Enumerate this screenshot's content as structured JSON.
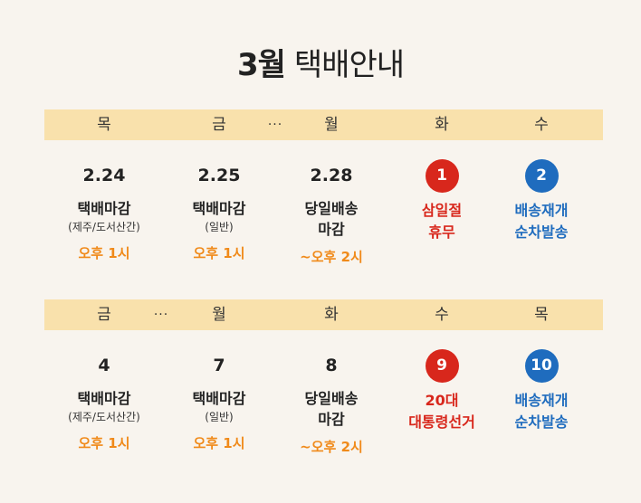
{
  "title": {
    "month": "3월",
    "rest": "택배안내"
  },
  "row1": {
    "days": [
      "목",
      "금",
      "월",
      "화",
      "수"
    ],
    "dots": "···",
    "cells": [
      {
        "date": "2.24",
        "label1": "택배마감",
        "label2": "(제주/도서산간)",
        "time": "오후 1시"
      },
      {
        "date": "2.25",
        "label1": "택배마감",
        "label2": "(일반)",
        "time": "오후 1시"
      },
      {
        "date": "2.28",
        "label1": "당일배송",
        "label2": "마감",
        "time": "~오후 2시"
      },
      {
        "num": "1",
        "line1": "삼일절",
        "line2": "휴무",
        "color": "#d8271c"
      },
      {
        "num": "2",
        "line1": "배송재개",
        "line2": "순차발송",
        "color": "#1f6cbe"
      }
    ]
  },
  "row2": {
    "days": [
      "금",
      "월",
      "화",
      "수",
      "목"
    ],
    "dots": "···",
    "cells": [
      {
        "date": "4",
        "label1": "택배마감",
        "label2": "(제주/도서산간)",
        "time": "오후 1시"
      },
      {
        "date": "7",
        "label1": "택배마감",
        "label2": "(일반)",
        "time": "오후 1시"
      },
      {
        "date": "8",
        "label1": "당일배송",
        "label2": "마감",
        "time": "~오후 2시"
      },
      {
        "num": "9",
        "line1": "20대",
        "line2": "대통령선거",
        "color": "#d8271c"
      },
      {
        "num": "10",
        "line1": "배송재개",
        "line2": "순차발송",
        "color": "#1f6cbe"
      }
    ]
  }
}
